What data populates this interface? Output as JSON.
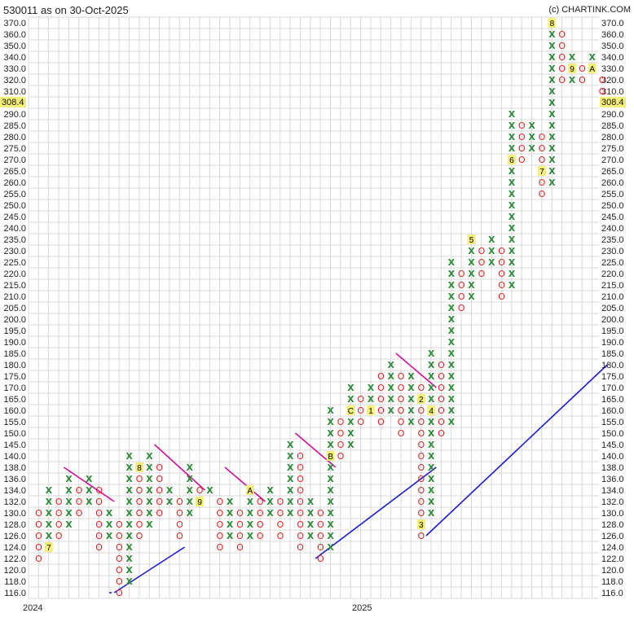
{
  "chart_data": {
    "type": "point-and-figure",
    "title": "530011 as on 30-Oct-2025",
    "credit": "(c) CHARTINK.COM",
    "y_ticks": [
      370.0,
      360.0,
      350.0,
      340.0,
      330.0,
      320.0,
      310.0,
      290.0,
      285.0,
      280.0,
      275.0,
      270.0,
      265.0,
      260.0,
      255.0,
      250.0,
      245.0,
      240.0,
      235.0,
      230.0,
      225.0,
      220.0,
      215.0,
      210.0,
      205.0,
      200.0,
      195.0,
      190.0,
      185.0,
      180.0,
      175.0,
      170.0,
      165.0,
      160.0,
      155.0,
      150.0,
      145.0,
      140.0,
      138.0,
      136.0,
      134.0,
      132.0,
      130.0,
      128.0,
      126.0,
      124.0,
      122.0,
      120.0,
      118.0,
      116.0
    ],
    "last_price": "308.4",
    "x_labels": [
      "2024",
      "2025"
    ],
    "columns": [
      {
        "type": "O",
        "low": 122,
        "high": 130
      },
      {
        "type": "X",
        "low": 126,
        "high": 134,
        "marks": {
          "124": "7"
        }
      },
      {
        "type": "O",
        "low": 126,
        "high": 132
      },
      {
        "type": "X",
        "low": 128,
        "high": 136
      },
      {
        "type": "O",
        "low": 130,
        "high": 134
      },
      {
        "type": "X",
        "low": 132,
        "high": 136
      },
      {
        "type": "O",
        "low": 124,
        "high": 134
      },
      {
        "type": "X",
        "low": 126,
        "high": 130
      },
      {
        "type": "O",
        "low": 116,
        "high": 128
      },
      {
        "type": "X",
        "low": 118,
        "high": 140
      },
      {
        "type": "O",
        "low": 126,
        "high": 136,
        "marks": {
          "138": "8"
        }
      },
      {
        "type": "X",
        "low": 128,
        "high": 140
      },
      {
        "type": "O",
        "low": 130,
        "high": 138
      },
      {
        "type": "X",
        "low": 132,
        "high": 134
      },
      {
        "type": "O",
        "low": 126,
        "high": 132
      },
      {
        "type": "X",
        "low": 130,
        "high": 138
      },
      {
        "type": "O",
        "low": 132,
        "high": 134,
        "marks": {
          "132": "9"
        }
      },
      {
        "type": "X",
        "low": 134,
        "high": 134
      },
      {
        "type": "O",
        "low": 124,
        "high": 132
      },
      {
        "type": "X",
        "low": 126,
        "high": 132
      },
      {
        "type": "O",
        "low": 124,
        "high": 130
      },
      {
        "type": "X",
        "low": 126,
        "high": 132,
        "marks": {
          "134": "A"
        }
      },
      {
        "type": "O",
        "low": 126,
        "high": 132
      },
      {
        "type": "X",
        "low": 130,
        "high": 134
      },
      {
        "type": "O",
        "low": 126,
        "high": 132
      },
      {
        "type": "X",
        "low": 130,
        "high": 145
      },
      {
        "type": "O",
        "low": 124,
        "high": 140
      },
      {
        "type": "X",
        "low": 126,
        "high": 132
      },
      {
        "type": "O",
        "low": 122,
        "high": 130
      },
      {
        "type": "X",
        "low": 124,
        "high": 160,
        "marks": {
          "140": "B"
        }
      },
      {
        "type": "O",
        "low": 140,
        "high": 155
      },
      {
        "type": "X",
        "low": 145,
        "high": 170,
        "marks": {
          "160": "C"
        }
      },
      {
        "type": "O",
        "low": 155,
        "high": 165
      },
      {
        "type": "X",
        "low": 160,
        "high": 170,
        "marks": {
          "160": "1"
        }
      },
      {
        "type": "O",
        "low": 155,
        "high": 175
      },
      {
        "type": "X",
        "low": 160,
        "high": 180
      },
      {
        "type": "O",
        "low": 150,
        "high": 175
      },
      {
        "type": "X",
        "low": 155,
        "high": 175
      },
      {
        "type": "O",
        "low": 126,
        "high": 170,
        "marks": {
          "128": "3",
          "165": "2"
        }
      },
      {
        "type": "X",
        "low": 130,
        "high": 185,
        "marks": {
          "160": "4"
        }
      },
      {
        "type": "O",
        "low": 150,
        "high": 180
      },
      {
        "type": "X",
        "low": 155,
        "high": 225
      },
      {
        "type": "O",
        "low": 205,
        "high": 220
      },
      {
        "type": "X",
        "low": 210,
        "high": 235,
        "marks": {
          "235": "5"
        }
      },
      {
        "type": "O",
        "low": 220,
        "high": 230
      },
      {
        "type": "X",
        "low": 225,
        "high": 235
      },
      {
        "type": "O",
        "low": 210,
        "high": 230
      },
      {
        "type": "X",
        "low": 215,
        "high": 290,
        "marks": {
          "270": "6"
        }
      },
      {
        "type": "O",
        "low": 270,
        "high": 285
      },
      {
        "type": "X",
        "low": 275,
        "high": 285
      },
      {
        "type": "O",
        "low": 255,
        "high": 280,
        "marks": {
          "265": "7"
        }
      },
      {
        "type": "X",
        "low": 260,
        "high": 370,
        "marks": {
          "370": "8"
        }
      },
      {
        "type": "O",
        "low": 320,
        "high": 360
      },
      {
        "type": "X",
        "low": 320,
        "high": 340,
        "marks": {
          "330": "9"
        }
      },
      {
        "type": "O",
        "low": 320,
        "high": 330
      },
      {
        "type": "X",
        "low": 330,
        "high": 340,
        "marks": {
          "330": "A"
        }
      },
      {
        "type": "O",
        "low": 310,
        "high": 320
      }
    ],
    "trendlines": [
      {
        "style": "support",
        "from": [
          8,
          116
        ],
        "to": [
          14,
          124
        ]
      },
      {
        "style": "support",
        "from": [
          28,
          122
        ],
        "to": [
          39,
          138
        ]
      },
      {
        "style": "support",
        "from": [
          39,
          126
        ],
        "to": [
          56,
          180
        ]
      },
      {
        "style": "resistance",
        "from": [
          3,
          138
        ],
        "to": [
          7,
          132
        ]
      },
      {
        "style": "resistance",
        "from": [
          12,
          145
        ],
        "to": [
          16,
          134
        ]
      },
      {
        "style": "resistance",
        "from": [
          19,
          138
        ],
        "to": [
          22,
          132
        ]
      },
      {
        "style": "resistance",
        "from": [
          26,
          150
        ],
        "to": [
          29,
          138
        ]
      },
      {
        "style": "resistance",
        "from": [
          36,
          185
        ],
        "to": [
          39,
          170
        ]
      }
    ]
  },
  "colors": {
    "x_mark": "#2e8b3a",
    "o_mark": "#e02020",
    "grid": "#d8d8d8",
    "support": "#1b1bd0",
    "resistance": "#d0109a",
    "highlight": "#f5f07a"
  }
}
